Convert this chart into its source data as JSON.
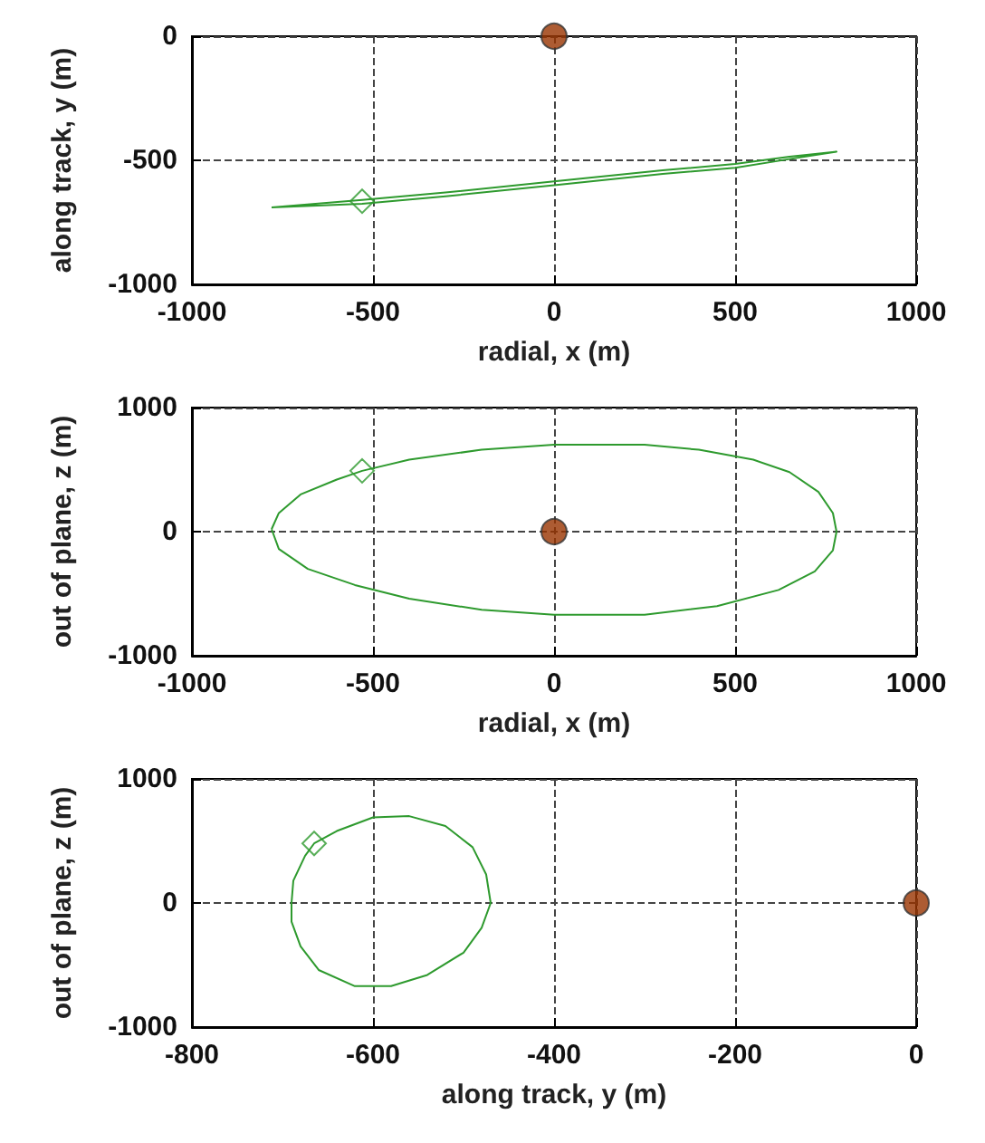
{
  "chart_data": [
    {
      "type": "scatter",
      "xlabel": "radial, x (m)",
      "ylabel": "along track, y (m)",
      "xlim": [
        -1000,
        1000
      ],
      "xticks": [
        -1000,
        -500,
        0,
        500,
        1000
      ],
      "ylim": [
        -1000,
        0
      ],
      "yticks": [
        -1000,
        -500,
        0
      ],
      "grid": true,
      "series": [
        {
          "color": "#2e9a2e",
          "marker": "diamond",
          "x": [
            -530
          ],
          "values": [
            -665
          ]
        },
        {
          "color": "#993300",
          "marker": "circle",
          "x": [
            0
          ],
          "values": [
            0
          ]
        }
      ]
    },
    {
      "type": "scatter",
      "xlabel": "radial, x (m)",
      "ylabel": "out of plane, z (m)",
      "xlim": [
        -1000,
        1000
      ],
      "xticks": [
        -1000,
        -500,
        0,
        500,
        1000
      ],
      "ylim": [
        -1000,
        1000
      ],
      "yticks": [
        -1000,
        0,
        1000
      ],
      "grid": true,
      "series": [
        {
          "color": "#2e9a2e",
          "marker": "diamond",
          "x": [
            -530
          ],
          "values": [
            490
          ]
        },
        {
          "color": "#993300",
          "marker": "circle",
          "x": [
            0
          ],
          "values": [
            0
          ]
        }
      ]
    },
    {
      "type": "scatter",
      "xlabel": "along track, y (m)",
      "ylabel": "out of plane, z (m)",
      "xlim": [
        -800,
        0
      ],
      "xticks": [
        -800,
        -600,
        -400,
        -200,
        0
      ],
      "ylim": [
        -1000,
        1000
      ],
      "yticks": [
        -1000,
        0,
        1000
      ],
      "grid": true,
      "series": [
        {
          "color": "#2e9a2e",
          "marker": "diamond",
          "x": [
            -665
          ],
          "values": [
            480
          ]
        },
        {
          "color": "#993300",
          "marker": "circle",
          "x": [
            0
          ],
          "values": [
            0
          ]
        }
      ]
    }
  ]
}
